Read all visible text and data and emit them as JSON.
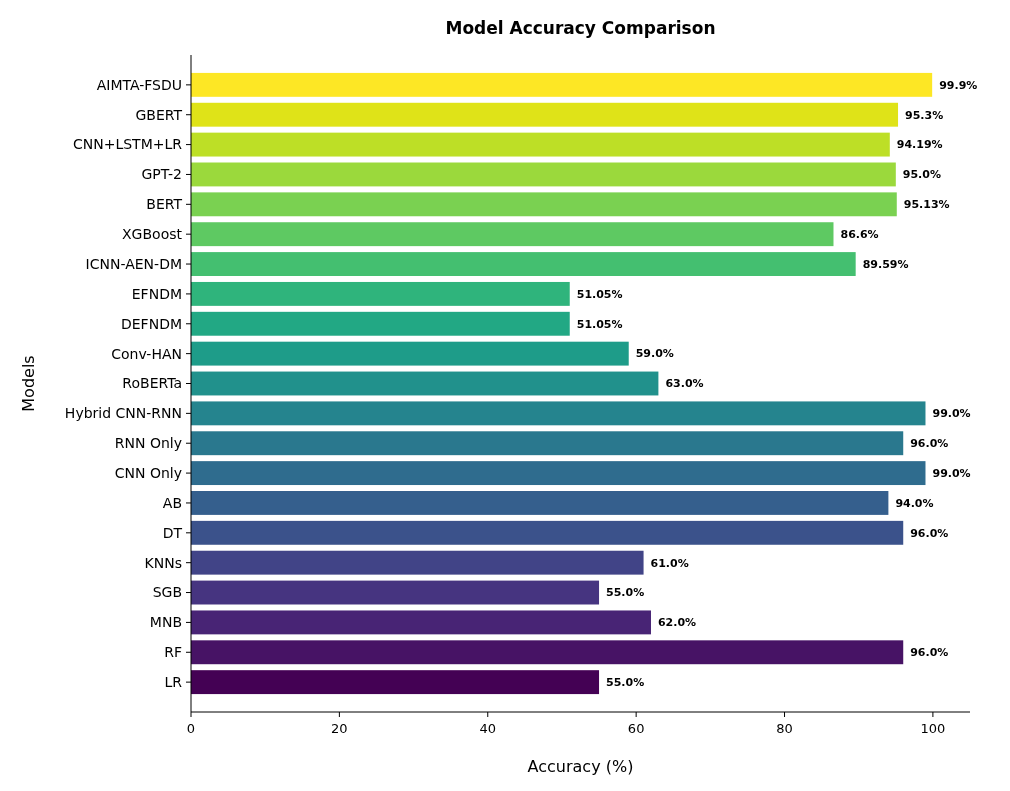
{
  "chart_data": {
    "type": "bar",
    "orientation": "horizontal",
    "title": "Model Accuracy Comparison",
    "xlabel": "Accuracy (%)",
    "ylabel": "Models",
    "categories": [
      "AIMTA-FSDU",
      "GBERT",
      "CNN+LSTM+LR",
      "GPT-2",
      "BERT",
      "XGBoost",
      "ICNN-AEN-DM",
      "EFNDM",
      "DEFNDM",
      "Conv-HAN",
      "RoBERTa",
      "Hybrid CNN-RNN",
      "RNN Only",
      "CNN Only",
      "AB",
      "DT",
      "KNNs",
      "SGB",
      "MNB",
      "RF",
      "LR"
    ],
    "values": [
      99.9,
      95.3,
      94.19,
      95.0,
      95.13,
      86.6,
      89.59,
      51.05,
      51.05,
      59.0,
      63.0,
      99.0,
      96.0,
      99.0,
      94.0,
      96.0,
      61.0,
      55.0,
      62.0,
      96.0,
      55.0
    ],
    "value_labels": [
      "99.9%",
      "95.3%",
      "94.19%",
      "95.0%",
      "95.13%",
      "86.6%",
      "89.59%",
      "51.05%",
      "51.05%",
      "59.0%",
      "63.0%",
      "99.0%",
      "96.0%",
      "99.0%",
      "94.0%",
      "96.0%",
      "61.0%",
      "55.0%",
      "62.0%",
      "96.0%",
      "55.0%"
    ],
    "colors": [
      "#fde725",
      "#dfe318",
      "#bddf26",
      "#9bd93c",
      "#7ad151",
      "#5ec962",
      "#44bf70",
      "#2fb47c",
      "#22a884",
      "#1e9c89",
      "#21918c",
      "#25848e",
      "#2a788e",
      "#2f6c8e",
      "#355f8d",
      "#3b528b",
      "#414487",
      "#463480",
      "#482475",
      "#471365",
      "#440154"
    ],
    "xlim": [
      0,
      105
    ],
    "xticks": [
      0,
      20,
      40,
      60,
      80,
      100
    ],
    "grid": false
  }
}
